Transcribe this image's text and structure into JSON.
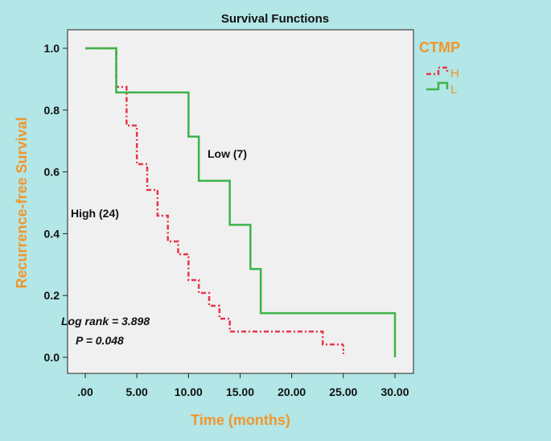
{
  "chart_data": {
    "type": "line",
    "title": "Survival Functions",
    "xlabel": "Time (months)",
    "ylabel": "Recurrence-free Survival",
    "xlim": [
      0,
      30
    ],
    "ylim": [
      0,
      1.0
    ],
    "x_ticks": [
      {
        "value": 0,
        "label": ".00"
      },
      {
        "value": 5,
        "label": "5.00"
      },
      {
        "value": 10,
        "label": "10.00"
      },
      {
        "value": 15,
        "label": "15.00"
      },
      {
        "value": 20,
        "label": "20.00"
      },
      {
        "value": 25,
        "label": "25.00"
      },
      {
        "value": 30,
        "label": "30.00"
      }
    ],
    "y_ticks": [
      {
        "value": 0.0,
        "label": "0.0"
      },
      {
        "value": 0.2,
        "label": "0.2"
      },
      {
        "value": 0.4,
        "label": "0.4"
      },
      {
        "value": 0.6,
        "label": "0.6"
      },
      {
        "value": 0.8,
        "label": "0.8"
      },
      {
        "value": 1.0,
        "label": "1.0"
      }
    ],
    "legend": {
      "title": "CTMP",
      "placement": "top-right",
      "title_color": "#f0962d"
    },
    "series": [
      {
        "name": "H",
        "color": "#e8344a",
        "style": "dashdot",
        "steps": [
          [
            0,
            1.0
          ],
          [
            3,
            0.875
          ],
          [
            4,
            0.75
          ],
          [
            5,
            0.625
          ],
          [
            6,
            0.5417
          ],
          [
            7,
            0.4583
          ],
          [
            8,
            0.375
          ],
          [
            9,
            0.3333
          ],
          [
            10,
            0.25
          ],
          [
            11,
            0.2083
          ],
          [
            12,
            0.1667
          ],
          [
            13,
            0.125
          ],
          [
            14,
            0.0833
          ],
          [
            23,
            0.0417
          ],
          [
            25,
            0.0417
          ]
        ],
        "censor_tick": [
          25,
          0.0417
        ]
      },
      {
        "name": "L",
        "color": "#3db34a",
        "style": "solid",
        "steps": [
          [
            0,
            1.0
          ],
          [
            3,
            0.8571
          ],
          [
            10,
            0.7143
          ],
          [
            11,
            0.5714
          ],
          [
            14,
            0.4286
          ],
          [
            16,
            0.2857
          ],
          [
            17,
            0.1429
          ],
          [
            30,
            0.1429
          ]
        ],
        "end_drop": [
          30,
          0.0
        ]
      }
    ],
    "annotations": {
      "low_label": "Low (7)",
      "high_label": "High (24)",
      "logrank": "Log rank = 3.898",
      "pvalue": "P = 0.048"
    },
    "axis_label_color": "#f0962d",
    "plot_background": "#f0f0f0"
  }
}
